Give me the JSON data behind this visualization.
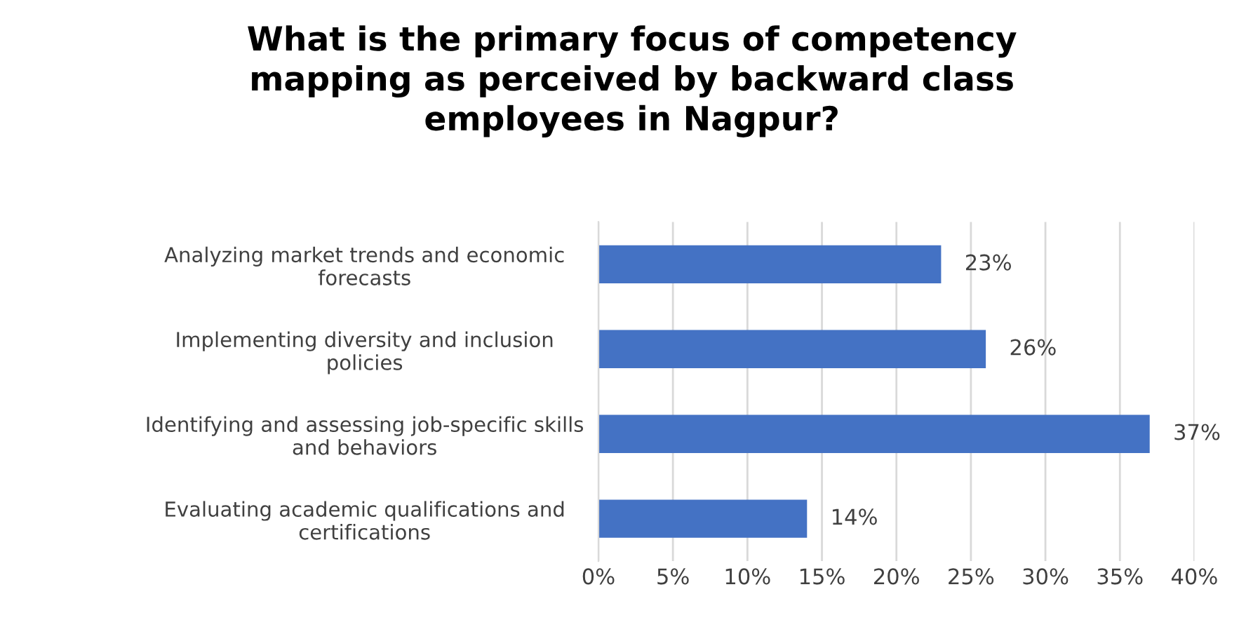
{
  "chart_data": {
    "type": "bar",
    "orientation": "horizontal",
    "title": "What is the primary focus of competency\nmapping as perceived by backward class\nemployees in Nagpur?",
    "categories": [
      "Analyzing market trends and economic\nforecasts",
      "Implementing diversity and inclusion\npolicies",
      "Identifying and assessing job-specific skills\nand behaviors",
      "Evaluating academic qualifications and\ncertifications"
    ],
    "values": [
      23,
      26,
      37,
      14
    ],
    "value_labels": [
      "23%",
      "26%",
      "37%",
      "14%"
    ],
    "color": "#4472c4",
    "xlim": [
      0,
      40
    ],
    "xticks": [
      {
        "value": 0,
        "label": "0%"
      },
      {
        "value": 5,
        "label": "5%"
      },
      {
        "value": 10,
        "label": "10%"
      },
      {
        "value": 15,
        "label": "15%"
      },
      {
        "value": 20,
        "label": "20%"
      },
      {
        "value": 25,
        "label": "25%"
      },
      {
        "value": 30,
        "label": "30%"
      },
      {
        "value": 35,
        "label": "35%"
      },
      {
        "value": 40,
        "label": "40%"
      }
    ],
    "grid": "x"
  }
}
